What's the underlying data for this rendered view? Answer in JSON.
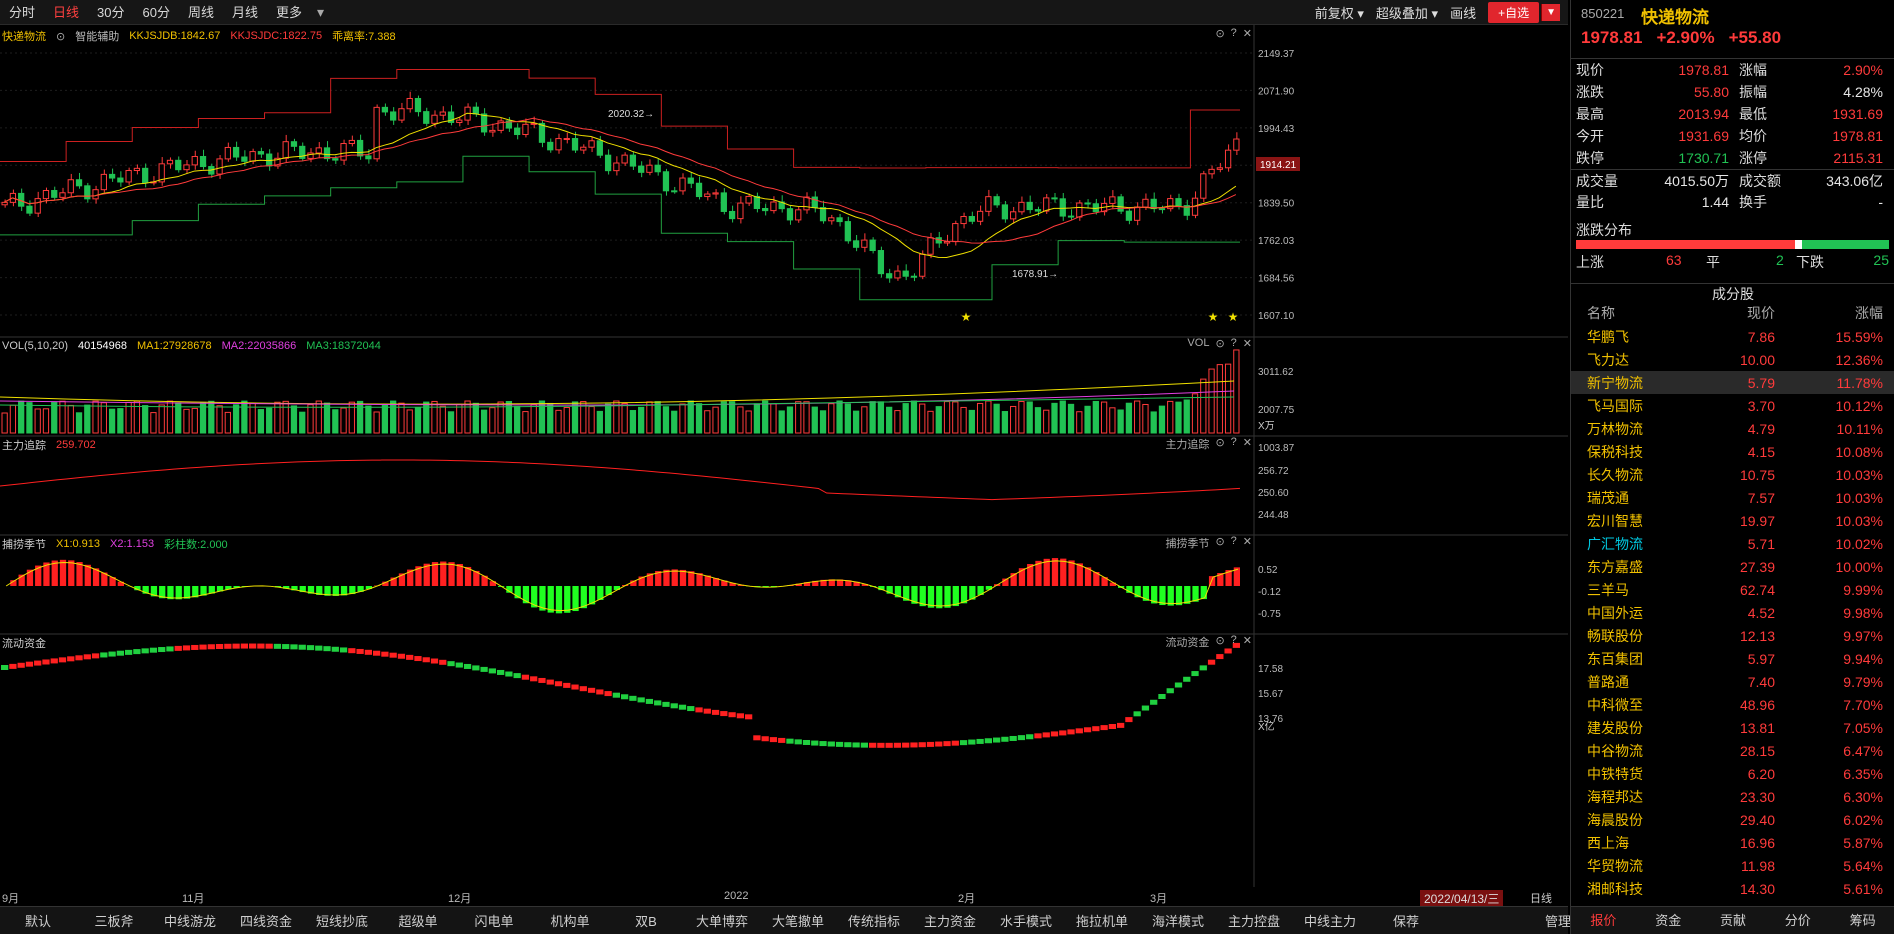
{
  "tabs": [
    "分时",
    "日线",
    "30分",
    "60分",
    "周线",
    "月线",
    "更多"
  ],
  "active_tab": 1,
  "toolbar": {
    "restore": "前复权",
    "overlay": "超级叠加",
    "draw": "画线",
    "add": "+自选"
  },
  "main_pane": {
    "name": "快递物流",
    "assist": "智能辅助",
    "i1": "KKJSJDB:1842.67",
    "i2": "KKJSJDC:1822.75",
    "i3": "乖离率:7.388",
    "axis": [
      "2149.37",
      "2071.90",
      "1994.43",
      "1914.21",
      "1839.50",
      "1762.03",
      "1684.56",
      "1607.10"
    ],
    "current_label": "1914.21",
    "high_note": "2020.32",
    "low_note": "1678.91"
  },
  "vol_pane": {
    "title": "VOL(5,10,20)",
    "v": "40154968",
    "ma1": "MA1:27928678",
    "ma2": "MA2:22035866",
    "ma3": "MA3:18372044",
    "tag": "VOL",
    "axis": [
      "3011.62",
      "2007.75",
      "1003.87"
    ],
    "unit": "X万"
  },
  "zl_pane": {
    "title": "主力追踪",
    "value": "259.702",
    "tag": "主力追踪",
    "axis": [
      "256.72",
      "250.60",
      "244.48"
    ]
  },
  "bp_pane": {
    "title": "捕捞季节",
    "x1": "X1:0.913",
    "x2": "X2:1.153",
    "cz": "彩柱数:2.000",
    "tag": "捕捞季节",
    "axis": [
      "0.52",
      "-0.12",
      "-0.75"
    ]
  },
  "ld_pane": {
    "title": "流动资金",
    "tag": "流动资金",
    "axis": [
      "17.58",
      "15.67",
      "13.76"
    ],
    "unit": "X亿"
  },
  "dates": [
    "9月",
    "11月",
    "12月",
    "2022",
    "2月",
    "3月"
  ],
  "current_date": "2022/04/13/三",
  "period_tag": "日线",
  "bottom_tabs": [
    "默认",
    "三板斧",
    "中线游龙",
    "四线资金",
    "短线抄底",
    "超级单",
    "闪电单",
    "机构单",
    "双B",
    "大单博弈",
    "大笔撤单",
    "传统指标",
    "主力资金",
    "水手模式",
    "拖拉机单",
    "海洋模式",
    "主力控盘",
    "中线主力",
    "保荐",
    "",
    "管理"
  ],
  "side": {
    "code": "850221",
    "name": "快递物流",
    "price": "1978.81",
    "pct": "+2.90%",
    "chg": "+55.80",
    "quote": [
      [
        "现价",
        "1978.81",
        "red",
        "涨幅",
        "2.90%",
        "red"
      ],
      [
        "涨跌",
        "55.80",
        "red",
        "振幅",
        "4.28%",
        "white"
      ],
      [
        "最高",
        "2013.94",
        "red",
        "最低",
        "1931.69",
        "red"
      ],
      [
        "今开",
        "1931.69",
        "red",
        "均价",
        "1978.81",
        "red"
      ],
      [
        "跌停",
        "1730.71",
        "green",
        "涨停",
        "2115.31",
        "red"
      ],
      [
        "成交量",
        "4015.50万",
        "white",
        "成交额",
        "343.06亿",
        "white"
      ],
      [
        "量比",
        "1.44",
        "white",
        "换手",
        "-",
        "white"
      ]
    ],
    "dist_title": "涨跌分布",
    "up_label": "上涨",
    "up": "63",
    "flat_label": "平",
    "flat": "2",
    "down_label": "下跌",
    "down": "25",
    "comp_title": "成分股",
    "comp_head": [
      "名称",
      "现价",
      "涨幅"
    ],
    "components": [
      [
        "华鹏飞",
        "7.86",
        "15.59%"
      ],
      [
        "飞力达",
        "10.00",
        "12.36%"
      ],
      [
        "新宁物流",
        "5.79",
        "11.78%"
      ],
      [
        "飞马国际",
        "3.70",
        "10.12%"
      ],
      [
        "万林物流",
        "4.79",
        "10.11%"
      ],
      [
        "保税科技",
        "4.15",
        "10.08%"
      ],
      [
        "长久物流",
        "10.75",
        "10.03%"
      ],
      [
        "瑞茂通",
        "7.57",
        "10.03%"
      ],
      [
        "宏川智慧",
        "19.97",
        "10.03%"
      ],
      [
        "广汇物流",
        "5.71",
        "10.02%"
      ],
      [
        "东方嘉盛",
        "27.39",
        "10.00%"
      ],
      [
        "三羊马",
        "62.74",
        "9.99%"
      ],
      [
        "中国外运",
        "4.52",
        "9.98%"
      ],
      [
        "畅联股份",
        "12.13",
        "9.97%"
      ],
      [
        "东百集团",
        "5.97",
        "9.94%"
      ],
      [
        "普路通",
        "7.40",
        "9.79%"
      ],
      [
        "中科微至",
        "48.96",
        "7.70%"
      ],
      [
        "建发股份",
        "13.81",
        "7.05%"
      ],
      [
        "中谷物流",
        "28.15",
        "6.47%"
      ],
      [
        "中铁特货",
        "6.20",
        "6.35%"
      ],
      [
        "海程邦达",
        "23.30",
        "6.30%"
      ],
      [
        "海晨股份",
        "29.40",
        "6.02%"
      ],
      [
        "西上海",
        "16.96",
        "5.87%"
      ],
      [
        "华贸物流",
        "11.98",
        "5.64%"
      ],
      [
        "湘邮科技",
        "14.30",
        "5.61%"
      ]
    ],
    "tabs": [
      "报价",
      "资金",
      "贡献",
      "分价",
      "筹码"
    ]
  },
  "colors": {
    "up": "#ff3b3b",
    "down": "#21c254",
    "accent": "#f0c000",
    "bg": "#000000"
  }
}
